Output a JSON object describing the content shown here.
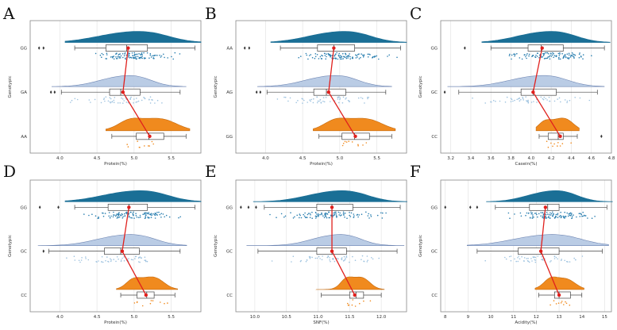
{
  "colors": {
    "top": "#1a6f96",
    "top_point": "#2a7fb0",
    "middle": "#b3c6e2",
    "middle_point": "#9ec3e0",
    "bottom": "#f08a1e",
    "bottom_point": "#f08a1e",
    "mean_line": "#e0201d",
    "frame": "#888888",
    "grid": "#e5e5e5"
  },
  "chart_data": [
    {
      "type": "raincloud",
      "panel": "A",
      "ylabel": "Genotypic",
      "xlabel": "Protein(%)",
      "categories": [
        "GG",
        "GA",
        "AA"
      ],
      "xlim": [
        3.6,
        5.9
      ],
      "xticks": [
        "4.0",
        "4.5",
        "5.0",
        "5.5"
      ],
      "xtick_values": [
        4.0,
        4.5,
        5.0,
        5.5
      ],
      "stats": [
        {
          "q1": 4.62,
          "median": 4.9,
          "q3": 5.18,
          "whislo": 4.2,
          "whishi": 5.82,
          "mean": 4.92,
          "outliers": [
            3.72,
            3.78
          ]
        },
        {
          "q1": 4.67,
          "median": 4.82,
          "q3": 5.08,
          "whislo": 4.02,
          "whishi": 5.62,
          "mean": 4.85,
          "outliers": [
            3.88,
            3.93
          ]
        },
        {
          "q1": 5.03,
          "median": 5.2,
          "q3": 5.4,
          "whislo": 4.7,
          "whishi": 5.7,
          "mean": 5.21,
          "outliers": []
        }
      ]
    },
    {
      "type": "raincloud",
      "panel": "B",
      "ylabel": "Genotypic",
      "xlabel": "Protein(%)",
      "categories": [
        "AA",
        "AG",
        "GG"
      ],
      "xlim": [
        3.6,
        5.9
      ],
      "xticks": [
        "4.0",
        "4.5",
        "5.0",
        "5.5"
      ],
      "xtick_values": [
        4.0,
        4.5,
        5.0,
        5.5
      ],
      "stats": [
        {
          "q1": 4.7,
          "median": 4.92,
          "q3": 5.2,
          "whislo": 4.2,
          "whishi": 5.82,
          "mean": 4.92,
          "outliers": [
            3.72,
            3.78
          ]
        },
        {
          "q1": 4.65,
          "median": 4.82,
          "q3": 5.08,
          "whislo": 4.02,
          "whishi": 5.62,
          "mean": 4.85,
          "outliers": [
            3.88,
            3.93
          ]
        },
        {
          "q1": 5.03,
          "median": 5.2,
          "q3": 5.4,
          "whislo": 4.72,
          "whishi": 5.7,
          "mean": 5.21,
          "outliers": []
        }
      ]
    },
    {
      "type": "raincloud",
      "panel": "C",
      "ylabel": "Genotypic",
      "xlabel": "Casein(%)",
      "categories": [
        "GG",
        "GC",
        "CC"
      ],
      "xlim": [
        3.1,
        4.8
      ],
      "xticks": [
        "3.2",
        "3.4",
        "3.6",
        "3.8",
        "4.0",
        "4.2",
        "4.4",
        "4.6",
        "4.8"
      ],
      "xtick_values": [
        3.2,
        3.4,
        3.6,
        3.8,
        4.0,
        4.2,
        4.4,
        4.6,
        4.8
      ],
      "stats": [
        {
          "q1": 3.97,
          "median": 4.1,
          "q3": 4.32,
          "whislo": 3.6,
          "whishi": 4.73,
          "mean": 4.11,
          "outliers": [
            3.34
          ]
        },
        {
          "q1": 3.9,
          "median": 4.02,
          "q3": 4.25,
          "whislo": 3.28,
          "whishi": 4.66,
          "mean": 4.02,
          "outliers": [
            3.14
          ]
        },
        {
          "q1": 4.17,
          "median": 4.27,
          "q3": 4.32,
          "whislo": 4.08,
          "whishi": 4.46,
          "mean": 4.29,
          "outliers": [
            4.7
          ]
        }
      ]
    },
    {
      "type": "raincloud",
      "panel": "D",
      "ylabel": "Genotypic",
      "xlabel": "Protein(%)",
      "categories": [
        "GG",
        "GC",
        "CC"
      ],
      "xlim": [
        3.6,
        5.9
      ],
      "xticks": [
        "4.0",
        "4.5",
        "5.0",
        "5.5"
      ],
      "xtick_values": [
        4.0,
        4.5,
        5.0,
        5.5
      ],
      "stats": [
        {
          "q1": 4.65,
          "median": 4.93,
          "q3": 5.18,
          "whislo": 4.2,
          "whishi": 5.82,
          "mean": 4.93,
          "outliers": [
            3.73,
            3.98
          ]
        },
        {
          "q1": 4.6,
          "median": 4.82,
          "q3": 5.07,
          "whislo": 3.85,
          "whishi": 5.62,
          "mean": 4.84,
          "outliers": [
            3.78
          ]
        },
        {
          "q1": 5.04,
          "median": 5.17,
          "q3": 5.27,
          "whislo": 4.82,
          "whishi": 5.55,
          "mean": 5.16,
          "outliers": []
        }
      ]
    },
    {
      "type": "raincloud",
      "panel": "E",
      "ylabel": "Genotypic",
      "xlabel": "SNF(%)",
      "categories": [
        "GG",
        "GC",
        "CC"
      ],
      "xlim": [
        9.7,
        12.4
      ],
      "xticks": [
        "10.0",
        "10.5",
        "11.0",
        "11.5",
        "12.0"
      ],
      "xtick_values": [
        10.0,
        10.5,
        11.0,
        11.5,
        12.0
      ],
      "stats": [
        {
          "q1": 10.98,
          "median": 11.22,
          "q3": 11.55,
          "whislo": 10.15,
          "whishi": 12.3,
          "mean": 11.22,
          "outliers": [
            9.78,
            9.9,
            10.02
          ]
        },
        {
          "q1": 10.98,
          "median": 11.22,
          "q3": 11.45,
          "whislo": 10.05,
          "whishi": 12.25,
          "mean": 11.22,
          "outliers": []
        },
        {
          "q1": 11.5,
          "median": 11.6,
          "q3": 11.72,
          "whislo": 11.05,
          "whishi": 12.0,
          "mean": 11.58,
          "outliers": []
        }
      ]
    },
    {
      "type": "raincloud",
      "panel": "F",
      "ylabel": "Genotypic",
      "xlabel": "Acidity(%)",
      "categories": [
        "GG",
        "GC",
        "CC"
      ],
      "xlim": [
        7.8,
        15.3
      ],
      "xticks": [
        "8",
        "9",
        "10",
        "11",
        "12",
        "13",
        "14",
        "15"
      ],
      "xtick_values": [
        8,
        9,
        10,
        11,
        12,
        13,
        14,
        15
      ],
      "stats": [
        {
          "q1": 11.7,
          "median": 12.5,
          "q3": 13.0,
          "whislo": 10.2,
          "whishi": 15.1,
          "mean": 12.4,
          "outliers": [
            8.0,
            9.1,
            9.4
          ]
        },
        {
          "q1": 11.2,
          "median": 12.2,
          "q3": 13.0,
          "whislo": 9.4,
          "whishi": 14.9,
          "mean": 12.2,
          "outliers": []
        },
        {
          "q1": 12.8,
          "median": 13.0,
          "q3": 13.5,
          "whislo": 12.1,
          "whishi": 14.0,
          "mean": 13.0,
          "outliers": []
        }
      ]
    }
  ]
}
